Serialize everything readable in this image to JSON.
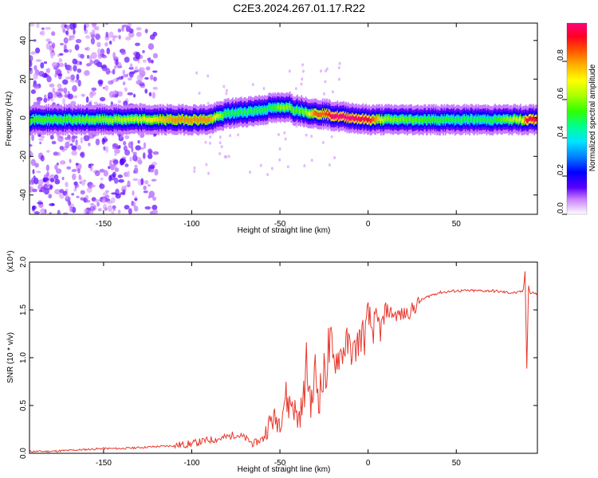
{
  "title": "C2E3.2024.267.01.17.R22",
  "chart_data": [
    {
      "type": "heatmap",
      "xlabel": "Height of straight line (km)",
      "ylabel": "Frequency (Hz)",
      "xlim": [
        -192,
        96
      ],
      "ylim": [
        -50,
        49
      ],
      "x_ticks": [
        -150,
        -100,
        -50,
        0,
        50
      ],
      "x_tick_labels": [
        "-150",
        "-100",
        "-50",
        "0",
        "50"
      ],
      "y_ticks": [
        -40,
        -20,
        0,
        20,
        40
      ],
      "y_tick_labels": [
        "-40",
        "-20",
        "0",
        "20",
        "40"
      ],
      "colorbar": {
        "label": "Normalized spectral amplitude",
        "range": [
          0,
          1
        ],
        "ticks": [
          0.0,
          0.2,
          0.4,
          0.6,
          0.8
        ],
        "tick_labels": [
          "0.0",
          "0.2",
          "0.4",
          "0.6",
          "0.8"
        ]
      },
      "ridge": {
        "x": [
          -192,
          -170,
          -150,
          -130,
          -110,
          -90,
          -80,
          -70,
          -60,
          -55,
          -50,
          -45,
          -42,
          -40,
          -35,
          -30,
          -25,
          -20,
          -10,
          0,
          10,
          30,
          50,
          70,
          88,
          90,
          96
        ],
        "y": [
          -1,
          -1,
          -1,
          -1,
          -1,
          -1,
          2,
          3,
          4,
          5,
          5,
          6,
          4,
          4,
          3,
          2,
          2,
          1,
          0,
          -1,
          -1,
          -1,
          -1,
          -1,
          -1,
          -1,
          -1
        ],
        "peak_amplitude": [
          0.55,
          0.55,
          0.6,
          0.65,
          0.8,
          0.8,
          0.5,
          0.5,
          0.5,
          0.5,
          0.6,
          0.6,
          0.55,
          0.55,
          0.6,
          0.85,
          0.85,
          1.0,
          1.0,
          0.95,
          0.6,
          0.55,
          0.5,
          0.5,
          0.7,
          0.95,
          0.95
        ]
      }
    },
    {
      "type": "line",
      "xlabel": "Height of straight line (km)",
      "ylabel": "SNR (10 * v/v)",
      "y_multiplier_label": "(x10⁴)",
      "xlim": [
        -192,
        96
      ],
      "ylim": [
        0,
        2.0
      ],
      "x_ticks": [
        -150,
        -100,
        -50,
        0,
        50
      ],
      "x_tick_labels": [
        "-150",
        "-100",
        "-50",
        "0",
        "50"
      ],
      "y_ticks": [
        0.0,
        0.5,
        1.0,
        1.5,
        2.0
      ],
      "y_tick_labels": [
        "0.0",
        "0.5",
        "1.0",
        "1.5",
        "2.0"
      ],
      "color": "#e8392e",
      "series": [
        {
          "x": [
            -192,
            -180,
            -170,
            -160,
            -150,
            -140,
            -130,
            -120,
            -110,
            -100,
            -95,
            -90,
            -85,
            -80,
            -75,
            -70,
            -65,
            -60,
            -55,
            -50,
            -47,
            -45,
            -43,
            -40,
            -37,
            -35,
            -32,
            -30,
            -28,
            -25,
            -22,
            -20,
            -18,
            -15,
            -12,
            -10,
            -8,
            -5,
            -3,
            -2,
            0,
            2,
            5,
            8,
            10,
            15,
            20,
            25,
            30,
            35,
            40,
            50,
            60,
            70,
            80,
            85,
            88,
            89,
            90,
            91,
            92,
            94,
            96
          ],
          "y": [
            0.02,
            0.02,
            0.03,
            0.04,
            0.05,
            0.05,
            0.06,
            0.07,
            0.08,
            0.1,
            0.12,
            0.14,
            0.15,
            0.17,
            0.2,
            0.16,
            0.1,
            0.15,
            0.35,
            0.35,
            0.6,
            0.5,
            0.55,
            0.35,
            0.5,
            0.9,
            0.5,
            0.85,
            0.6,
            0.8,
            1.1,
            0.95,
            1.0,
            1.05,
            1.15,
            1.1,
            1.05,
            1.2,
            1.25,
            1.2,
            1.45,
            1.3,
            1.35,
            1.3,
            1.5,
            1.45,
            1.45,
            1.5,
            1.6,
            1.65,
            1.68,
            1.7,
            1.7,
            1.7,
            1.68,
            1.68,
            1.7,
            1.9,
            0.9,
            1.75,
            1.67,
            1.68,
            1.66
          ]
        }
      ]
    }
  ]
}
